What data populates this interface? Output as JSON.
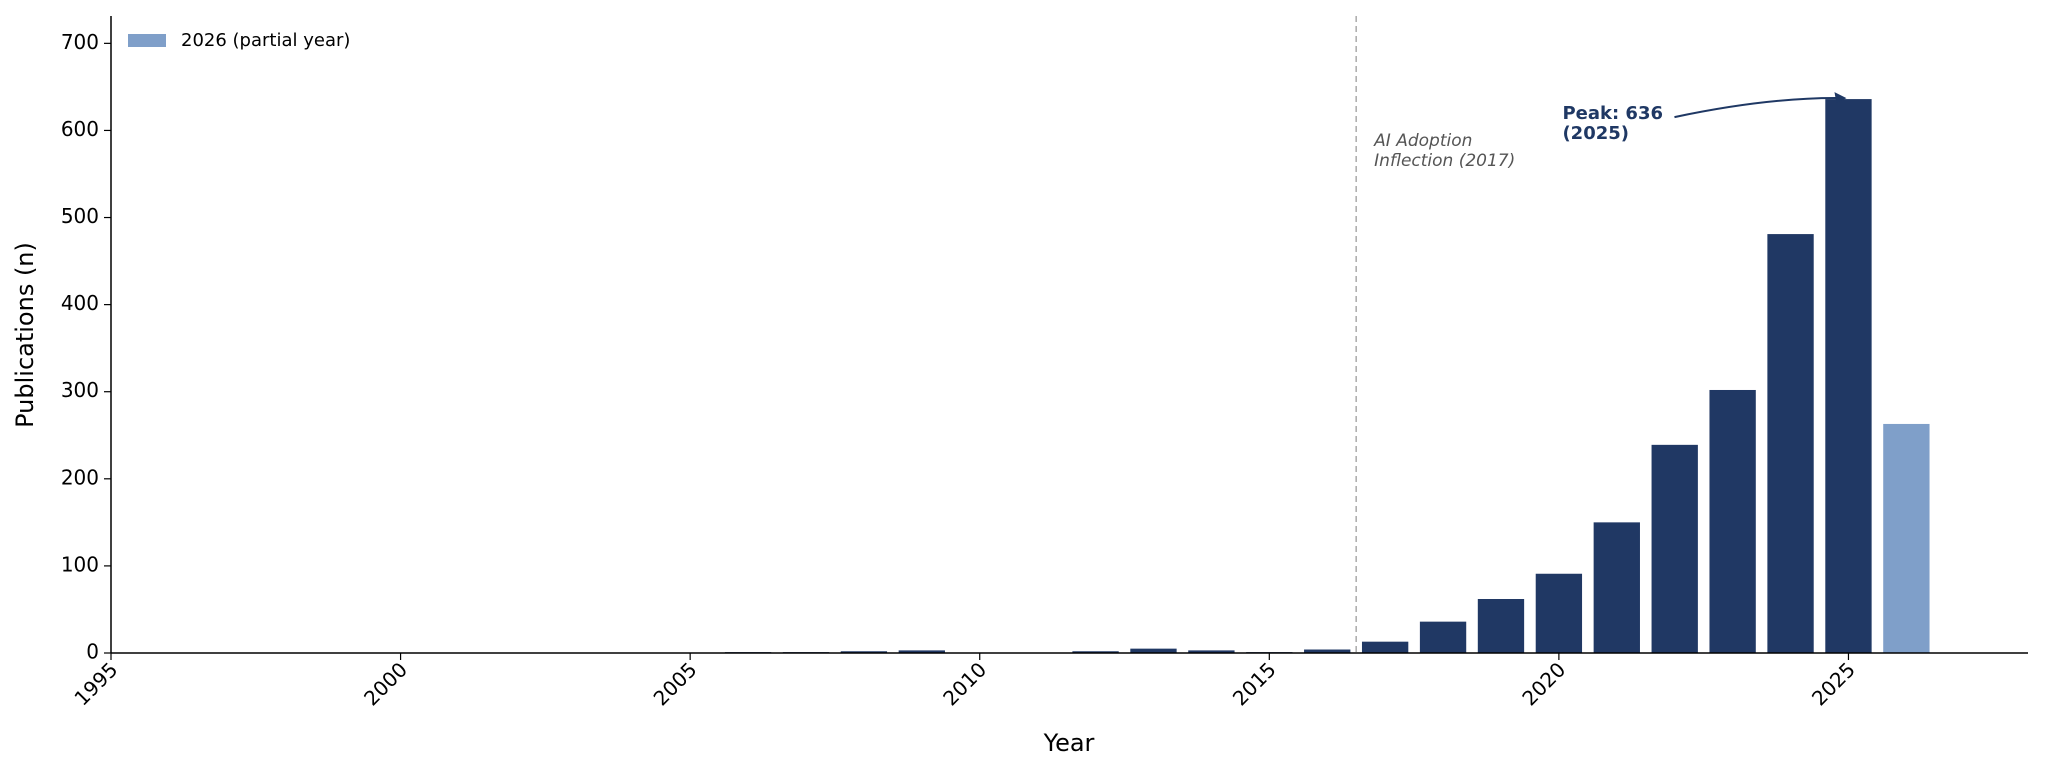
{
  "chart_data": {
    "type": "bar",
    "x_label": "Year",
    "y_label": "Publications (n)",
    "series": [
      {
        "color": "#203864",
        "x": [
          2006,
          2007,
          2008,
          2009,
          2010,
          2011,
          2012,
          2013,
          2014,
          2015,
          2016,
          2017,
          2018,
          2019,
          2020,
          2021,
          2022,
          2023,
          2024,
          2025
        ],
        "values": [
          1,
          1,
          2,
          3,
          0,
          0,
          2,
          5,
          3,
          1,
          4,
          13,
          36,
          62,
          91,
          150,
          239,
          302,
          481,
          636
        ]
      },
      {
        "name": "2026 (partial year)",
        "color": "#7f9fc9",
        "x": [
          2026
        ],
        "values": [
          263
        ]
      }
    ],
    "bar_width": 0.8,
    "xlim": [
      1995,
      2028.1
    ],
    "xticks": [
      1995,
      2000,
      2005,
      2010,
      2015,
      2020,
      2025
    ],
    "ylim": [
      0,
      731.4
    ],
    "yticks": [
      0,
      100,
      200,
      300,
      400,
      500,
      600,
      700
    ],
    "legend": "upper left",
    "vline": {
      "x": 2016.5,
      "color": "#aaaaaa",
      "label": [
        "AI Adoption",
        "Inflection (2017)"
      ]
    },
    "peak_annotation": {
      "lines": [
        "Peak: 636",
        "(2025)"
      ],
      "color": "#1f3864"
    }
  }
}
